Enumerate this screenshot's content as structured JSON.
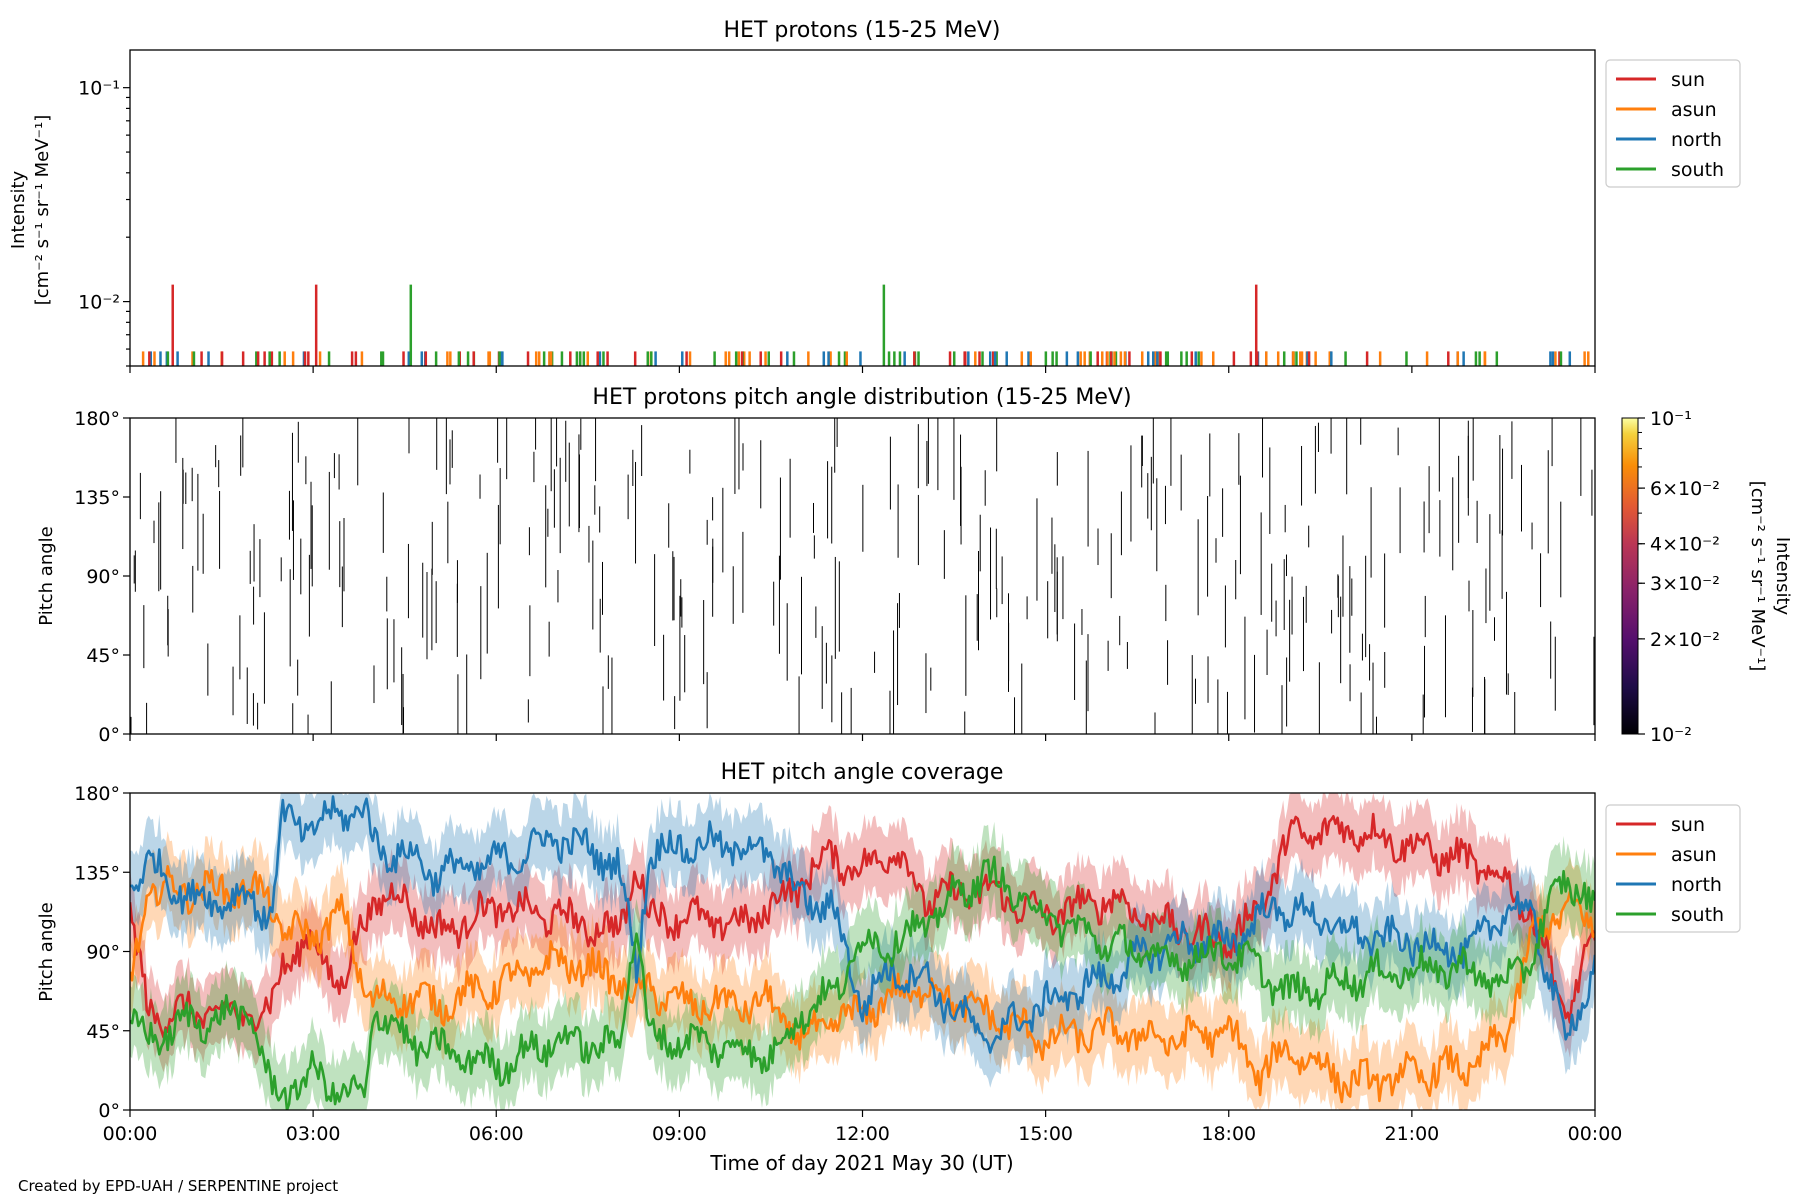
{
  "footer": "Created by EPD-UAH / SERPENTINE project",
  "xlabel": "Time of day 2021 May 30 (UT)",
  "xticks": [
    "00:00",
    "03:00",
    "06:00",
    "09:00",
    "12:00",
    "15:00",
    "18:00",
    "21:00",
    "00:00"
  ],
  "colors": {
    "sun": "#d62728",
    "asun": "#ff7f0e",
    "north": "#1f77b4",
    "south": "#2ca02c"
  },
  "chart_data": [
    {
      "type": "line",
      "title": "HET protons (15-25 MeV)",
      "ylabel_line1": "Intensity",
      "ylabel_line2": "[cm⁻² s⁻¹ sr⁻¹ MeV⁻¹]",
      "yscale": "log",
      "ylim": [
        0.005,
        0.15
      ],
      "yticks": [
        {
          "value": 0.1,
          "label": "10⁻¹"
        },
        {
          "value": 0.01,
          "label": "10⁻²"
        }
      ],
      "legend": [
        "sun",
        "asun",
        "north",
        "south"
      ],
      "baseline": 0.00585,
      "spikes": [
        {
          "series": "sun",
          "t": 0.7,
          "y": 0.012
        },
        {
          "series": "sun",
          "t": 3.05,
          "y": 0.012
        },
        {
          "series": "south",
          "t": 4.6,
          "y": 0.012
        },
        {
          "series": "south",
          "t": 12.35,
          "y": 0.012
        },
        {
          "series": "sun",
          "t": 18.45,
          "y": 0.012
        }
      ]
    },
    {
      "type": "heatmap",
      "title": "HET protons pitch angle distribution (15-25 MeV)",
      "ylabel": "Pitch angle",
      "ylim": [
        0,
        180
      ],
      "yticks": [
        {
          "value": 0,
          "label": "0°"
        },
        {
          "value": 45,
          "label": "45°"
        },
        {
          "value": 90,
          "label": "90°"
        },
        {
          "value": 135,
          "label": "135°"
        },
        {
          "value": 180,
          "label": "180°"
        }
      ],
      "colorbar": {
        "label_line1": "Intensity",
        "label_line2": "[cm⁻² s⁻¹ sr⁻¹ MeV⁻¹]",
        "range": [
          0.01,
          0.1
        ],
        "ticks": [
          {
            "value": 0.1,
            "label": "10⁻¹"
          },
          {
            "value": 0.06,
            "label": "6×10⁻²"
          },
          {
            "value": 0.04,
            "label": "4×10⁻²"
          },
          {
            "value": 0.03,
            "label": "3×10⁻²"
          },
          {
            "value": 0.02,
            "label": "2×10⁻²"
          },
          {
            "value": 0.01,
            "label": "10⁻²"
          }
        ]
      }
    },
    {
      "type": "area",
      "title": "HET pitch angle coverage",
      "ylabel": "Pitch angle",
      "ylim": [
        0,
        180
      ],
      "xlim_hours": [
        0,
        24
      ],
      "yticks": [
        {
          "value": 0,
          "label": "0°"
        },
        {
          "value": 45,
          "label": "45°"
        },
        {
          "value": 90,
          "label": "90°"
        },
        {
          "value": 135,
          "label": "135°"
        },
        {
          "value": 180,
          "label": "180°"
        }
      ],
      "legend": [
        "sun",
        "asun",
        "north",
        "south"
      ],
      "band_halfwidth_deg": 20,
      "series": [
        {
          "name": "sun",
          "t": [
            0,
            0.3,
            1,
            2,
            2.3,
            2.5,
            3,
            3.5,
            3.85,
            4,
            4.5,
            5,
            6,
            7,
            8,
            8.3,
            8.5,
            9,
            10,
            10.5,
            11,
            11.5,
            12,
            12.5,
            13,
            14,
            15,
            16,
            17,
            18,
            18.5,
            19,
            20,
            21,
            22,
            22.5,
            23,
            23.5,
            24
          ],
          "v": [
            110,
            55,
            55,
            55,
            55,
            85,
            95,
            70,
            110,
            120,
            120,
            100,
            115,
            110,
            100,
            140,
            110,
            110,
            105,
            115,
            130,
            145,
            135,
            150,
            120,
            125,
            110,
            120,
            105,
            95,
            115,
            155,
            160,
            150,
            140,
            130,
            110,
            55,
            95
          ]
        },
        {
          "name": "asun",
          "t": [
            0,
            0.3,
            1,
            2,
            2.3,
            2.5,
            3,
            3.5,
            3.85,
            4,
            4.5,
            5,
            6,
            7,
            8,
            8.3,
            8.5,
            9,
            10,
            10.5,
            11,
            11.5,
            12,
            12.5,
            13,
            14,
            15,
            16,
            17,
            18,
            18.5,
            19,
            20,
            21,
            22,
            22.5,
            23,
            23.5,
            24
          ],
          "v": [
            70,
            125,
            125,
            125,
            120,
            100,
            100,
            110,
            70,
            60,
            65,
            60,
            70,
            85,
            75,
            60,
            70,
            60,
            60,
            60,
            40,
            50,
            55,
            65,
            70,
            55,
            40,
            45,
            40,
            45,
            20,
            35,
            15,
            20,
            25,
            40,
            100,
            115,
            105
          ]
        },
        {
          "name": "north",
          "t": [
            0,
            0.3,
            1,
            2,
            2.3,
            2.5,
            3,
            3.5,
            3.85,
            4,
            4.5,
            5,
            6,
            7,
            8,
            8.3,
            8.5,
            9,
            10,
            10.5,
            11,
            11.5,
            12,
            12.5,
            13,
            14,
            15,
            16,
            17,
            18,
            18.5,
            19,
            20,
            21,
            22,
            22.5,
            23,
            23.5,
            24
          ],
          "v": [
            130,
            140,
            120,
            120,
            110,
            165,
            160,
            170,
            170,
            150,
            145,
            135,
            140,
            155,
            140,
            80,
            145,
            150,
            150,
            145,
            120,
            115,
            60,
            80,
            75,
            40,
            60,
            75,
            95,
            95,
            110,
            115,
            100,
            95,
            90,
            115,
            110,
            40,
            80
          ]
        },
        {
          "name": "south",
          "t": [
            0,
            0.3,
            1,
            2,
            2.3,
            2.5,
            3,
            3.5,
            3.85,
            4,
            4.5,
            5,
            6,
            7,
            8,
            8.3,
            8.5,
            9,
            10,
            10.5,
            11,
            11.5,
            12,
            12.5,
            13,
            14,
            15,
            16,
            17,
            18,
            18.5,
            19,
            20,
            21,
            22,
            22.5,
            23,
            23.5,
            24
          ],
          "v": [
            50,
            40,
            50,
            55,
            10,
            10,
            20,
            10,
            5,
            60,
            40,
            35,
            25,
            40,
            35,
            110,
            40,
            40,
            35,
            30,
            55,
            65,
            95,
            95,
            105,
            135,
            110,
            95,
            85,
            90,
            80,
            65,
            75,
            80,
            80,
            70,
            90,
            135,
            110
          ]
        }
      ]
    }
  ]
}
